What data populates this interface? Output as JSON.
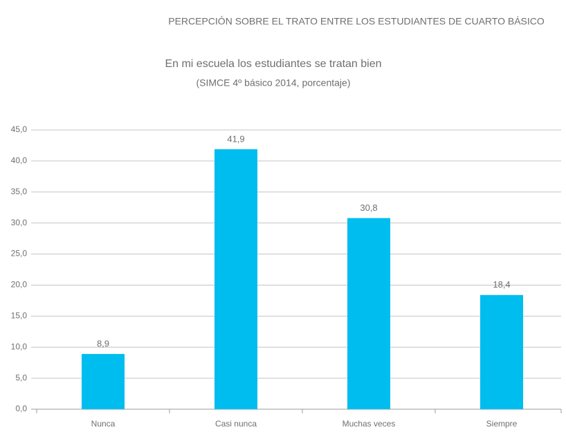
{
  "chart_data": {
    "type": "bar",
    "title": "PERCEPCIÓN SOBRE EL TRATO ENTRE LOS ESTUDIANTES DE CUARTO BÁSICO",
    "subtitle": [
      "En mi escuela los estudiantes se tratan bien",
      "(SIMCE 4º básico 2014, porcentaje)"
    ],
    "categories": [
      "Nunca",
      "Casi nunca",
      "Muchas veces",
      "Siempre"
    ],
    "values": [
      8.9,
      41.9,
      30.8,
      18.4
    ],
    "value_labels": [
      "8,9",
      "41,9",
      "30,8",
      "18,4"
    ],
    "color": "#00bdf0",
    "ylim": [
      0,
      45
    ],
    "yticks": [
      {
        "value": 0,
        "label": "0,0"
      },
      {
        "value": 5,
        "label": "5,0"
      },
      {
        "value": 10,
        "label": "10,0"
      },
      {
        "value": 15,
        "label": "15,0"
      },
      {
        "value": 20,
        "label": "20,0"
      },
      {
        "value": 25,
        "label": "25,0"
      },
      {
        "value": 30,
        "label": "30,0"
      },
      {
        "value": 35,
        "label": "35,0"
      },
      {
        "value": 40,
        "label": "40,0"
      },
      {
        "value": 45,
        "label": "45,0"
      }
    ],
    "grid": true
  }
}
